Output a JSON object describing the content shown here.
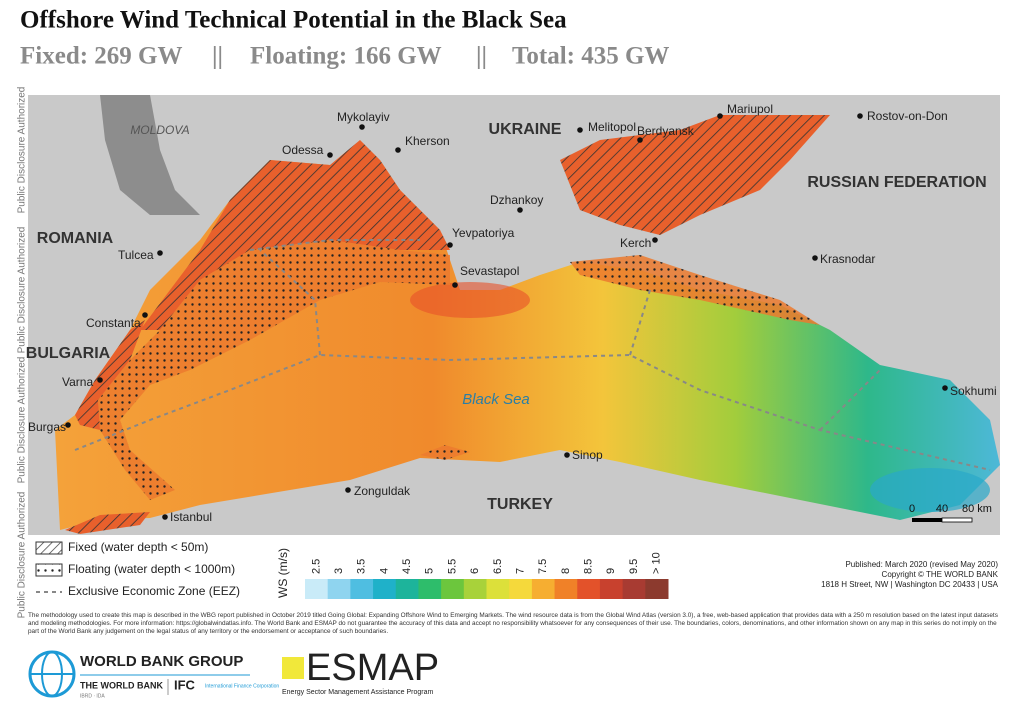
{
  "header": {
    "title": "Offshore Wind Technical Potential in the Black Sea",
    "subtitle": [
      "Fixed: 269 GW",
      "||",
      "Floating: 166 GW",
      "||",
      "Total: 435 GW"
    ]
  },
  "side_text": "Public Disclosure Authorized",
  "map": {
    "countries": [
      "MOLDOVA",
      "UKRAINE",
      "ROMANIA",
      "BULGARIA",
      "RUSSIAN FEDERATION",
      "TURKEY"
    ],
    "sea_label": "Black Sea",
    "cities": [
      "Mykolayiv",
      "Kherson",
      "Odessa",
      "Melitopol",
      "Berdyansk",
      "Mariupol",
      "Rostov-on-Don",
      "Dzhankoy",
      "Yevpatoriya",
      "Sevastapol",
      "Kerch",
      "Krasnodar",
      "Tulcea",
      "Constanta",
      "Varna",
      "Burgas",
      "Sinop",
      "Zonguldak",
      "Istanbul",
      "Sokhumi"
    ],
    "scale_labels": [
      "0",
      "40",
      "80 km"
    ]
  },
  "legend": {
    "items": [
      "Fixed (water depth < 50m)",
      "Floating (water depth < 1000m)",
      "Exclusive Economic Zone (EEZ)"
    ],
    "color_scale": {
      "title": "WS (m/s)",
      "labels": [
        "2.5",
        "3",
        "3.5",
        "4",
        "4.5",
        "5",
        "5.5",
        "6",
        "6.5",
        "7",
        "7.5",
        "8",
        "8.5",
        "9",
        "9.5",
        "> 10"
      ],
      "colors": [
        "#c9ebf8",
        "#8fd4ef",
        "#4fbee1",
        "#1fb1c9",
        "#1db49b",
        "#2ebd6b",
        "#6cc63d",
        "#a8d23a",
        "#dce03a",
        "#f5d93b",
        "#f6ae31",
        "#f08128",
        "#e3522a",
        "#c8412e",
        "#a83b32",
        "#8c3a2e"
      ]
    }
  },
  "publication": [
    "Published: March 2020 (revised May 2020)",
    "Copyright © THE WORLD BANK",
    "1818 H Street, NW | Washington DC 20433 | USA"
  ],
  "methodology": "The methodology used to create this map is described in the WBG report published in October 2019 titled Going Global: Expanding Offshore Wind to Emerging Markets. The wind resource data is from the Global Wind Atlas (version 3.0), a free, web-based application that provides data with a 250 m resolution based on the latest input datasets and modeling methodologies. For more information: https://globalwindatlas.info. The World Bank and ESMAP do not guarantee the accuracy of this data and accept no responsibility whatsoever for any consequences of their use. The boundaries, colors, denominations, and other information shown on any map in this series do not imply on the part of the World Bank any judgement on the legal status of any territory or the endorsement or acceptance of such boundaries.",
  "logos": {
    "wbg": "WORLD BANK GROUP",
    "wb": "THE WORLD BANK",
    "wb_sub": "IBRD · IDA",
    "ifc": "IFC",
    "ifc_sub": "International Finance Corporation",
    "esmap": "ESMAP",
    "esmap_sub": "Energy Sector Management Assistance Program"
  }
}
